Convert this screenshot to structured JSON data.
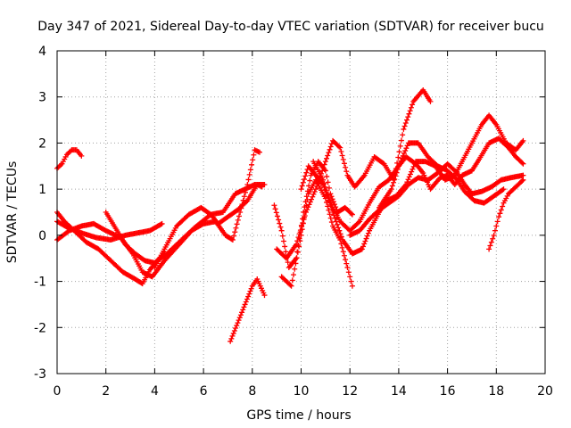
{
  "chart_data": {
    "type": "scatter",
    "title": "Day 347 of 2021, Sidereal Day-to-day VTEC variation (SDTVAR) for receiver bucu",
    "xlabel": "GPS time / hours",
    "ylabel": "SDTVAR / TECUs",
    "xlim": [
      0,
      20
    ],
    "ylim": [
      -3,
      4
    ],
    "xticks": [
      0,
      2,
      4,
      6,
      8,
      10,
      12,
      14,
      16,
      18,
      20
    ],
    "yticks": [
      -3,
      -2,
      -1,
      0,
      1,
      2,
      3,
      4
    ],
    "grid": true,
    "marker": "+",
    "color": "#ff0000",
    "series": [
      {
        "name": "s1",
        "points": [
          [
            0,
            1.45
          ],
          [
            0.2,
            1.55
          ],
          [
            0.4,
            1.75
          ],
          [
            0.6,
            1.85
          ],
          [
            0.8,
            1.85
          ],
          [
            1.0,
            1.72
          ]
        ]
      },
      {
        "name": "s2",
        "points": [
          [
            0,
            0.5
          ],
          [
            0.3,
            0.3
          ],
          [
            0.7,
            0.1
          ],
          [
            1.2,
            -0.15
          ],
          [
            1.7,
            -0.3
          ],
          [
            2.2,
            -0.55
          ],
          [
            2.7,
            -0.8
          ],
          [
            3.2,
            -0.95
          ],
          [
            3.5,
            -1.05
          ],
          [
            3.8,
            -0.75
          ],
          [
            4.1,
            -0.55
          ],
          [
            4.4,
            -0.4
          ]
        ]
      },
      {
        "name": "s3",
        "points": [
          [
            0,
            0.3
          ],
          [
            0.5,
            0.15
          ],
          [
            1.0,
            0.05
          ],
          [
            1.6,
            -0.05
          ],
          [
            2.2,
            -0.1
          ],
          [
            2.8,
            0.0
          ],
          [
            3.3,
            0.05
          ],
          [
            3.8,
            0.1
          ],
          [
            4.3,
            0.25
          ]
        ]
      },
      {
        "name": "s4",
        "points": [
          [
            0,
            -0.1
          ],
          [
            0.5,
            0.1
          ],
          [
            1.0,
            0.2
          ],
          [
            1.5,
            0.25
          ],
          [
            2.0,
            0.1
          ],
          [
            2.6,
            -0.05
          ],
          [
            3.1,
            -0.4
          ],
          [
            3.5,
            -0.8
          ],
          [
            3.9,
            -0.9
          ],
          [
            4.4,
            -0.55
          ],
          [
            5.0,
            -0.2
          ],
          [
            5.6,
            0.15
          ],
          [
            6.3,
            0.45
          ],
          [
            6.8,
            0.5
          ],
          [
            7.3,
            0.9
          ],
          [
            7.7,
            1.0
          ],
          [
            8.1,
            1.1
          ],
          [
            8.5,
            1.1
          ]
        ]
      },
      {
        "name": "s5",
        "points": [
          [
            2.0,
            0.5
          ],
          [
            2.4,
            0.15
          ],
          [
            2.8,
            -0.2
          ],
          [
            3.2,
            -0.4
          ],
          [
            3.6,
            -0.55
          ],
          [
            4.0,
            -0.6
          ],
          [
            4.5,
            -0.4
          ],
          [
            5.0,
            -0.15
          ],
          [
            5.5,
            0.1
          ],
          [
            6.0,
            0.25
          ],
          [
            6.5,
            0.3
          ],
          [
            6.9,
            0.0
          ],
          [
            7.2,
            -0.1
          ],
          [
            7.5,
            0.5
          ],
          [
            7.8,
            1.1
          ],
          [
            8.1,
            1.85
          ],
          [
            8.3,
            1.8
          ]
        ]
      },
      {
        "name": "s6",
        "points": [
          [
            4.0,
            -0.7
          ],
          [
            4.4,
            -0.3
          ],
          [
            4.9,
            0.2
          ],
          [
            5.4,
            0.45
          ],
          [
            5.9,
            0.6
          ],
          [
            6.3,
            0.45
          ],
          [
            6.6,
            0.25
          ],
          [
            7.0,
            0.4
          ],
          [
            7.4,
            0.55
          ],
          [
            7.8,
            0.75
          ],
          [
            8.2,
            1.1
          ],
          [
            8.4,
            1.05
          ]
        ]
      },
      {
        "name": "s7",
        "points": [
          [
            7.1,
            -2.3
          ],
          [
            7.4,
            -1.9
          ],
          [
            7.7,
            -1.5
          ],
          [
            8.0,
            -1.1
          ],
          [
            8.2,
            -0.95
          ],
          [
            8.5,
            -1.3
          ]
        ]
      },
      {
        "name": "s8",
        "points": [
          [
            8.9,
            0.65
          ],
          [
            9.2,
            0.1
          ],
          [
            9.5,
            -0.7
          ],
          [
            9.8,
            -0.5
          ],
          [
            10.1,
            0.5
          ],
          [
            10.4,
            1.3
          ],
          [
            10.7,
            1.6
          ],
          [
            11.0,
            1.4
          ],
          [
            11.2,
            0.9
          ],
          [
            11.5,
            0.5
          ],
          [
            11.8,
            0.6
          ],
          [
            12.1,
            0.45
          ]
        ]
      },
      {
        "name": "s9",
        "points": [
          [
            9.0,
            -0.3
          ],
          [
            9.4,
            -0.5
          ],
          [
            9.8,
            -0.2
          ],
          [
            10.2,
            0.5
          ],
          [
            10.6,
            1.0
          ],
          [
            11.0,
            1.6
          ],
          [
            11.3,
            2.05
          ],
          [
            11.6,
            1.9
          ],
          [
            11.9,
            1.3
          ],
          [
            12.2,
            1.05
          ],
          [
            12.6,
            1.3
          ],
          [
            13.0,
            1.7
          ],
          [
            13.4,
            1.55
          ],
          [
            13.8,
            1.2
          ],
          [
            14.2,
            2.3
          ],
          [
            14.6,
            2.9
          ],
          [
            15.0,
            3.15
          ],
          [
            15.3,
            2.9
          ]
        ]
      },
      {
        "name": "s10",
        "points": [
          [
            9.2,
            -0.9
          ],
          [
            9.6,
            -1.1
          ],
          [
            10.0,
            0.0
          ],
          [
            10.3,
            0.9
          ],
          [
            10.6,
            1.2
          ],
          [
            11.0,
            0.8
          ],
          [
            11.3,
            0.2
          ],
          [
            11.6,
            -0.1
          ],
          [
            11.9,
            -0.7
          ],
          [
            12.1,
            -1.1
          ]
        ]
      },
      {
        "name": "s11",
        "points": [
          [
            10.0,
            1.0
          ],
          [
            10.3,
            1.5
          ],
          [
            10.6,
            1.3
          ],
          [
            10.9,
            1.1
          ],
          [
            11.2,
            0.7
          ],
          [
            11.6,
            0.3
          ],
          [
            12.0,
            0.1
          ],
          [
            12.4,
            0.3
          ],
          [
            12.8,
            0.7
          ],
          [
            13.2,
            1.05
          ],
          [
            13.6,
            1.2
          ],
          [
            14.0,
            1.5
          ],
          [
            14.4,
            2.0
          ],
          [
            14.8,
            2.0
          ],
          [
            15.2,
            1.7
          ],
          [
            15.6,
            1.5
          ],
          [
            16.0,
            1.4
          ],
          [
            16.4,
            1.2
          ],
          [
            16.7,
            0.95
          ],
          [
            17.1,
            0.75
          ],
          [
            17.5,
            0.7
          ],
          [
            17.9,
            0.85
          ],
          [
            18.3,
            1.0
          ]
        ]
      },
      {
        "name": "s12",
        "points": [
          [
            10.5,
            1.6
          ],
          [
            10.9,
            1.2
          ],
          [
            11.3,
            0.5
          ],
          [
            11.7,
            -0.1
          ],
          [
            12.1,
            -0.4
          ],
          [
            12.5,
            -0.3
          ],
          [
            12.8,
            0.1
          ],
          [
            13.2,
            0.5
          ],
          [
            13.5,
            0.75
          ],
          [
            13.9,
            0.85
          ],
          [
            14.3,
            1.1
          ],
          [
            14.7,
            1.6
          ],
          [
            15.1,
            1.6
          ],
          [
            15.5,
            1.5
          ],
          [
            15.9,
            1.2
          ],
          [
            16.3,
            1.3
          ],
          [
            16.6,
            1.6
          ],
          [
            17.0,
            2.0
          ],
          [
            17.4,
            2.4
          ],
          [
            17.7,
            2.6
          ],
          [
            18.0,
            2.4
          ],
          [
            18.4,
            2.0
          ],
          [
            18.8,
            1.85
          ],
          [
            19.1,
            2.05
          ]
        ]
      },
      {
        "name": "s13",
        "points": [
          [
            12.0,
            0.0
          ],
          [
            12.4,
            0.1
          ],
          [
            12.8,
            0.35
          ],
          [
            13.2,
            0.55
          ],
          [
            13.6,
            0.7
          ],
          [
            14.0,
            0.85
          ],
          [
            14.4,
            1.1
          ],
          [
            14.8,
            1.25
          ],
          [
            15.2,
            1.2
          ],
          [
            15.6,
            1.35
          ],
          [
            16.0,
            1.55
          ],
          [
            16.4,
            1.35
          ],
          [
            16.7,
            1.1
          ],
          [
            17.0,
            0.9
          ],
          [
            17.4,
            0.95
          ],
          [
            17.8,
            1.05
          ],
          [
            18.2,
            1.2
          ],
          [
            18.6,
            1.25
          ],
          [
            19.1,
            1.3
          ]
        ]
      },
      {
        "name": "s14",
        "points": [
          [
            13.2,
            0.6
          ],
          [
            13.7,
            1.0
          ],
          [
            14.0,
            1.5
          ],
          [
            14.3,
            1.7
          ],
          [
            14.7,
            1.55
          ],
          [
            15.0,
            1.35
          ],
          [
            15.3,
            1.0
          ],
          [
            15.7,
            1.25
          ],
          [
            16.0,
            1.3
          ],
          [
            16.3,
            1.1
          ],
          [
            16.6,
            1.3
          ],
          [
            17.0,
            1.4
          ],
          [
            17.3,
            1.65
          ],
          [
            17.7,
            2.0
          ],
          [
            18.1,
            2.1
          ],
          [
            18.5,
            1.9
          ],
          [
            18.8,
            1.7
          ],
          [
            19.1,
            1.55
          ]
        ]
      },
      {
        "name": "s15",
        "points": [
          [
            17.7,
            -0.3
          ],
          [
            17.9,
            0.0
          ],
          [
            18.1,
            0.4
          ],
          [
            18.3,
            0.7
          ],
          [
            18.5,
            0.9
          ],
          [
            18.8,
            1.05
          ],
          [
            19.1,
            1.2
          ]
        ]
      }
    ]
  }
}
